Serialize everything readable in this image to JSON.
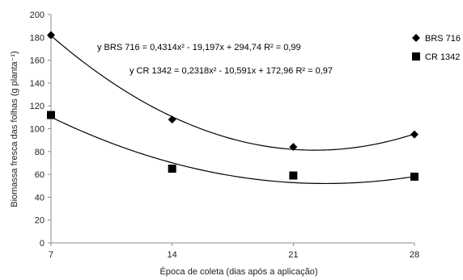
{
  "chart_data": {
    "type": "scatter",
    "title": "",
    "xlabel": "Época de coleta (dias após a aplicação)",
    "ylabel": "Biomassa fresca das folhas (g planta⁻¹)",
    "xlim": [
      7,
      28
    ],
    "ylim": [
      0,
      200
    ],
    "xticks": [
      "7",
      "14",
      "21",
      "28"
    ],
    "yticks": [
      "0",
      "20",
      "40",
      "60",
      "80",
      "100",
      "120",
      "140",
      "160",
      "180",
      "200"
    ],
    "grid": false,
    "legend_position": "right",
    "series": [
      {
        "name": "BRS 716",
        "marker": "diamond",
        "color": "#000000",
        "x": [
          7,
          14,
          21,
          28
        ],
        "y": [
          182,
          108,
          84,
          95
        ],
        "trend": {
          "a": 0.4314,
          "b": -19.197,
          "c": 294.74
        },
        "equation": "y BRS 716 = 0,4314x² - 19,197x + 294,74 R² = 0,99"
      },
      {
        "name": "CR 1342",
        "marker": "square",
        "color": "#000000",
        "x": [
          7,
          14,
          21,
          28
        ],
        "y": [
          112,
          65,
          59,
          58
        ],
        "trend": {
          "a": 0.2318,
          "b": -10.591,
          "c": 172.96
        },
        "equation": "y CR 1342 = 0,2318x² - 10,591x + 172,96 R² = 0,97"
      }
    ]
  }
}
